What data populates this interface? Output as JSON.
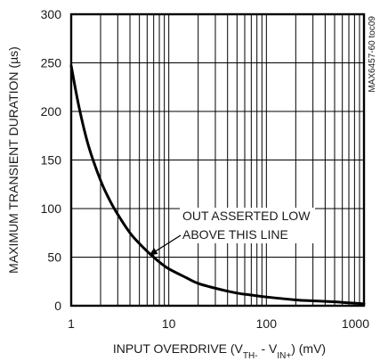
{
  "chart_data": {
    "type": "line",
    "ylabel": "MAXIMUM TRANSIENT DURATION (µs)",
    "xlabel": {
      "prefix": "INPUT OVERDRIVE (V",
      "sub1": "TH-",
      "mid": " - V",
      "sub2": "IN+",
      "suffix": ") (mV)"
    },
    "code_label": "MAX6457-60 toc09",
    "x_scale": "log",
    "xlim": [
      1,
      1000
    ],
    "ylim": [
      0,
      300
    ],
    "x_ticks": [
      1,
      10,
      100,
      1000
    ],
    "x_tick_labels": [
      "1",
      "10",
      "100",
      "1000"
    ],
    "y_ticks": [
      0,
      50,
      100,
      150,
      200,
      250,
      300
    ],
    "y_tick_labels": [
      "0",
      "50",
      "100",
      "150",
      "200",
      "250",
      "300"
    ],
    "grid": true,
    "annotation": {
      "lines": [
        "OUT ASSERTED LOW",
        "ABOVE THIS LINE"
      ],
      "points_to": [
        6.3,
        52
      ]
    },
    "series": [
      {
        "x": [
          1,
          1.2,
          1.5,
          2,
          2.5,
          3,
          4,
          5,
          6,
          7,
          8,
          10,
          15,
          20,
          30,
          50,
          70,
          100,
          200,
          300,
          500,
          700,
          1000
        ],
        "y": [
          247,
          205,
          165,
          129,
          108,
          94,
          75,
          64,
          56,
          50,
          45,
          38,
          29,
          23,
          18,
          13,
          11,
          9,
          6,
          5,
          4,
          3,
          2
        ]
      }
    ]
  }
}
